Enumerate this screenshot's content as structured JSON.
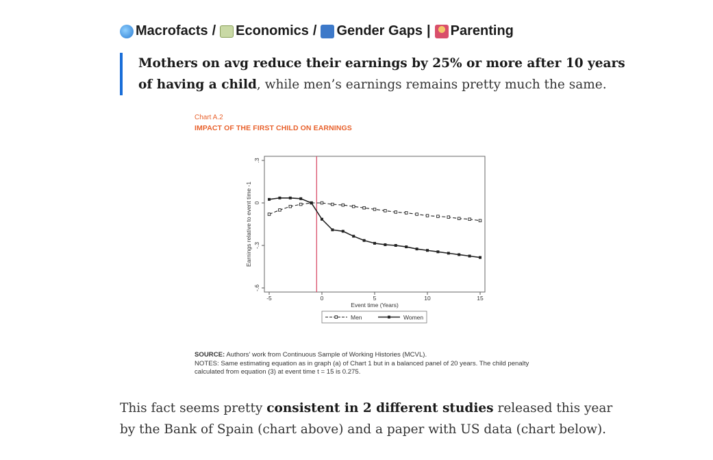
{
  "breadcrumb": {
    "items": [
      {
        "icon": "globe-icon",
        "label": "Macrofacts"
      },
      {
        "icon": "money-icon",
        "label": "Economics"
      },
      {
        "icon": "restroom-icon",
        "label": "Gender Gaps"
      },
      {
        "icon": "family-icon",
        "label": "Parenting"
      }
    ],
    "separators": [
      "/",
      "/",
      "|"
    ]
  },
  "quote": {
    "bold": "Mothers on avg reduce their earnings by 25% or more after 10 years of having a child",
    "rest": ", while men’s earnings remains pretty much the same."
  },
  "figure": {
    "kicker": "Chart A.2",
    "title": "IMPACT OF THE FIRST CHILD ON EARNINGS",
    "source_label": "SOURCE:",
    "source_text": " Authors' work from Continuous Sample of Working Histories (MCVL).",
    "notes": "NOTES: Same estimating equation as in graph (a) of Chart 1 but in a balanced panel of 20 years. The child penalty calculated from equation (3) at event time t = 15 is 0.275."
  },
  "chart_data": {
    "type": "line",
    "title": "IMPACT OF THE FIRST CHILD ON EARNINGS",
    "xlabel": "Event time (Years)",
    "ylabel": "Earnings relative to event time -1",
    "xlim": [
      -5,
      15
    ],
    "ylim": [
      -0.6,
      0.3
    ],
    "xticks": [
      -5,
      0,
      5,
      10,
      15
    ],
    "yticks": [
      0.3,
      0,
      -0.3,
      -0.6
    ],
    "ytick_labels": [
      ".3",
      "0",
      "-.3",
      "-.6"
    ],
    "event_line_x": -0.5,
    "legend_position": "bottom-center",
    "grid": false,
    "colors": {
      "series": "#222222",
      "event_line": "#d9506b"
    },
    "x": [
      -5,
      -4,
      -3,
      -2,
      -1,
      0,
      1,
      2,
      3,
      4,
      5,
      6,
      7,
      8,
      9,
      10,
      11,
      12,
      13,
      14,
      15
    ],
    "series": [
      {
        "name": "Men",
        "style": "dashed",
        "values": [
          -0.08,
          -0.05,
          -0.025,
          -0.01,
          0.0,
          0.0,
          -0.01,
          -0.015,
          -0.025,
          -0.035,
          -0.045,
          -0.055,
          -0.065,
          -0.07,
          -0.08,
          -0.09,
          -0.095,
          -0.1,
          -0.11,
          -0.115,
          -0.125
        ]
      },
      {
        "name": "Women",
        "style": "solid",
        "values": [
          0.025,
          0.035,
          0.035,
          0.03,
          0.0,
          -0.115,
          -0.19,
          -0.2,
          -0.235,
          -0.265,
          -0.285,
          -0.295,
          -0.3,
          -0.31,
          -0.325,
          -0.335,
          -0.345,
          -0.355,
          -0.365,
          -0.375,
          -0.385
        ]
      }
    ]
  },
  "paragraph": {
    "before": "This fact seems pretty ",
    "bold": "consistent in 2 different studies",
    "after": " released this year by the Bank of Spain (chart above) and a paper with US data (chart below)."
  }
}
